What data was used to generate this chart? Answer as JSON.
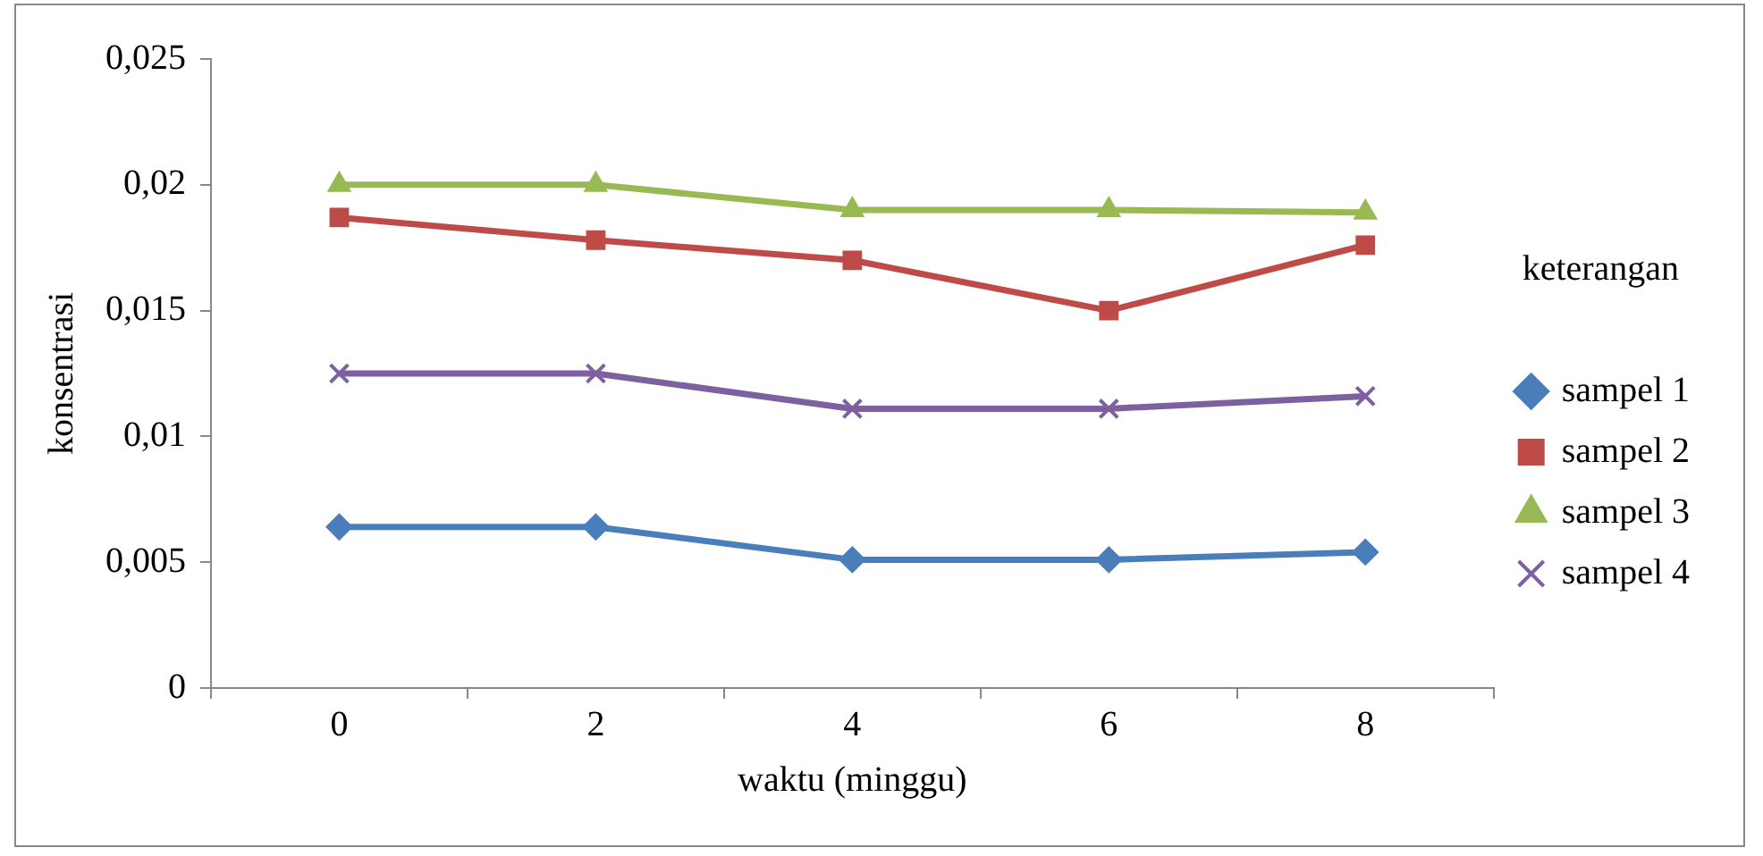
{
  "chart_data": {
    "type": "line",
    "xlabel": "waktu (minggu)",
    "ylabel": "konsentrasi",
    "legend_title": "keterangan",
    "legend": "right",
    "grid": false,
    "categories": [
      "0",
      "2",
      "4",
      "6",
      "8"
    ],
    "ylim": [
      0,
      0.025
    ],
    "yticks": [
      0,
      {
        "value": 0.005,
        "label": "0,005"
      },
      {
        "value": 0.01,
        "label": "0,01"
      },
      {
        "value": 0.015,
        "label": "0,015"
      },
      {
        "value": 0.02,
        "label": "0,02"
      },
      {
        "value": 0.025,
        "label": "0,025"
      }
    ],
    "series": [
      {
        "name": "sampel 1",
        "color": "#4a7ebb",
        "marker": "diamond",
        "values": [
          0.0064,
          0.0064,
          0.0051,
          0.0051,
          0.0054
        ]
      },
      {
        "name": "sampel 2",
        "color": "#be4b48",
        "marker": "square",
        "values": [
          0.0187,
          0.0178,
          0.017,
          0.015,
          0.0176
        ]
      },
      {
        "name": "sampel 3",
        "color": "#98b954",
        "marker": "triangle",
        "values": [
          0.02,
          0.02,
          0.019,
          0.019,
          0.0189
        ]
      },
      {
        "name": "sampel 4",
        "color": "#7d60a0",
        "marker": "cross",
        "values": [
          0.0125,
          0.0125,
          0.0111,
          0.0111,
          0.0116
        ]
      }
    ]
  }
}
